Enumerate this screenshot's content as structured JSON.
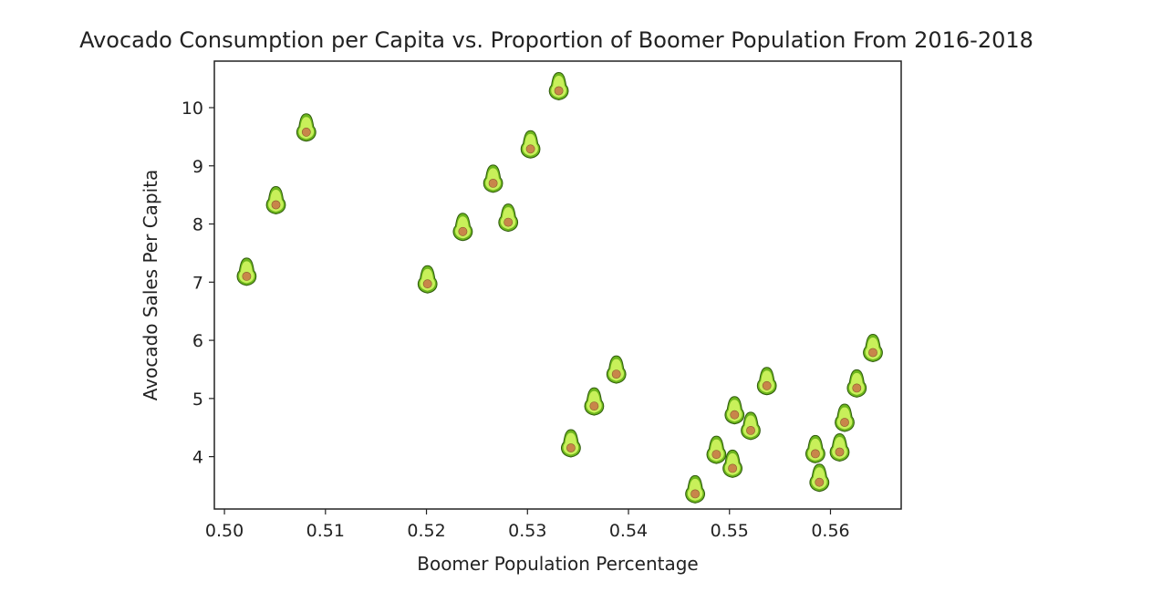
{
  "chart_data": {
    "type": "scatter",
    "title": "Avocado Consumption per Capita vs. Proportion of Boomer Population From 2016-2018",
    "xlabel": "Boomer Population Percentage",
    "ylabel": "Avocado Sales Per Capita",
    "xlim": [
      0.499,
      0.567
    ],
    "ylim": [
      3.1,
      10.8
    ],
    "xticks": [
      "0.50",
      "0.51",
      "0.52",
      "0.53",
      "0.54",
      "0.55",
      "0.56"
    ],
    "yticks": [
      "4",
      "5",
      "6",
      "7",
      "8",
      "9",
      "10"
    ],
    "grid": false,
    "marker": "avocado-icon",
    "colors": {
      "skin": "#6cb51c",
      "flesh": "#c8f05a",
      "pit": "#c8864a",
      "outline": "#2f5a0d"
    },
    "points": [
      {
        "x": 0.5022,
        "y": 7.1
      },
      {
        "x": 0.5051,
        "y": 8.33
      },
      {
        "x": 0.5081,
        "y": 9.58
      },
      {
        "x": 0.5201,
        "y": 6.97
      },
      {
        "x": 0.5236,
        "y": 7.87
      },
      {
        "x": 0.5266,
        "y": 8.7
      },
      {
        "x": 0.5281,
        "y": 8.03
      },
      {
        "x": 0.5303,
        "y": 9.29
      },
      {
        "x": 0.5331,
        "y": 10.29
      },
      {
        "x": 0.5343,
        "y": 4.15
      },
      {
        "x": 0.5366,
        "y": 4.87
      },
      {
        "x": 0.5388,
        "y": 5.42
      },
      {
        "x": 0.5466,
        "y": 3.36
      },
      {
        "x": 0.5487,
        "y": 4.04
      },
      {
        "x": 0.5503,
        "y": 3.8
      },
      {
        "x": 0.5505,
        "y": 4.72
      },
      {
        "x": 0.5521,
        "y": 4.45
      },
      {
        "x": 0.5537,
        "y": 5.22
      },
      {
        "x": 0.5585,
        "y": 4.05
      },
      {
        "x": 0.5589,
        "y": 3.56
      },
      {
        "x": 0.5609,
        "y": 4.08
      },
      {
        "x": 0.5614,
        "y": 4.59
      },
      {
        "x": 0.5626,
        "y": 5.18
      },
      {
        "x": 0.5642,
        "y": 5.79
      }
    ]
  }
}
